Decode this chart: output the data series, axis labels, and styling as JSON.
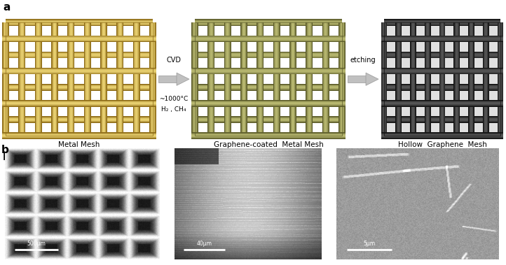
{
  "fig_width": 7.22,
  "fig_height": 3.79,
  "dpi": 100,
  "background_color": "#ffffff",
  "panel_a_label": "a",
  "panel_b_label": "b",
  "mesh1_wire_dark": "#8B6914",
  "mesh1_wire_mid": "#C9A840",
  "mesh1_wire_light": "#E8D070",
  "mesh1_gap": "#ffffff",
  "mesh2_wire_dark": "#5A5A28",
  "mesh2_wire_mid": "#8B8A48",
  "mesh2_wire_light": "#B8B870",
  "mesh2_gap": "#ffffff",
  "mesh3_wire_dark": "#111111",
  "mesh3_wire_mid": "#333333",
  "mesh3_wire_light": "#555555",
  "mesh3_gap": "#ffffff",
  "arrow1_text_top": "CVD",
  "arrow1_text_mid": "~1000°C",
  "arrow1_text_bot": "H₂ , CH₄",
  "arrow2_text": "etching",
  "label1": "Metal Mesh",
  "label2": "Graphene-coated  Metal Mesh",
  "label3": "Hollow  Graphene  Mesh",
  "scale1": "500μm",
  "scale2": "40μm",
  "scale3": "5μm",
  "label_fontsize": 7.5,
  "annotation_fontsize": 7,
  "panel_label_fontsize": 11
}
